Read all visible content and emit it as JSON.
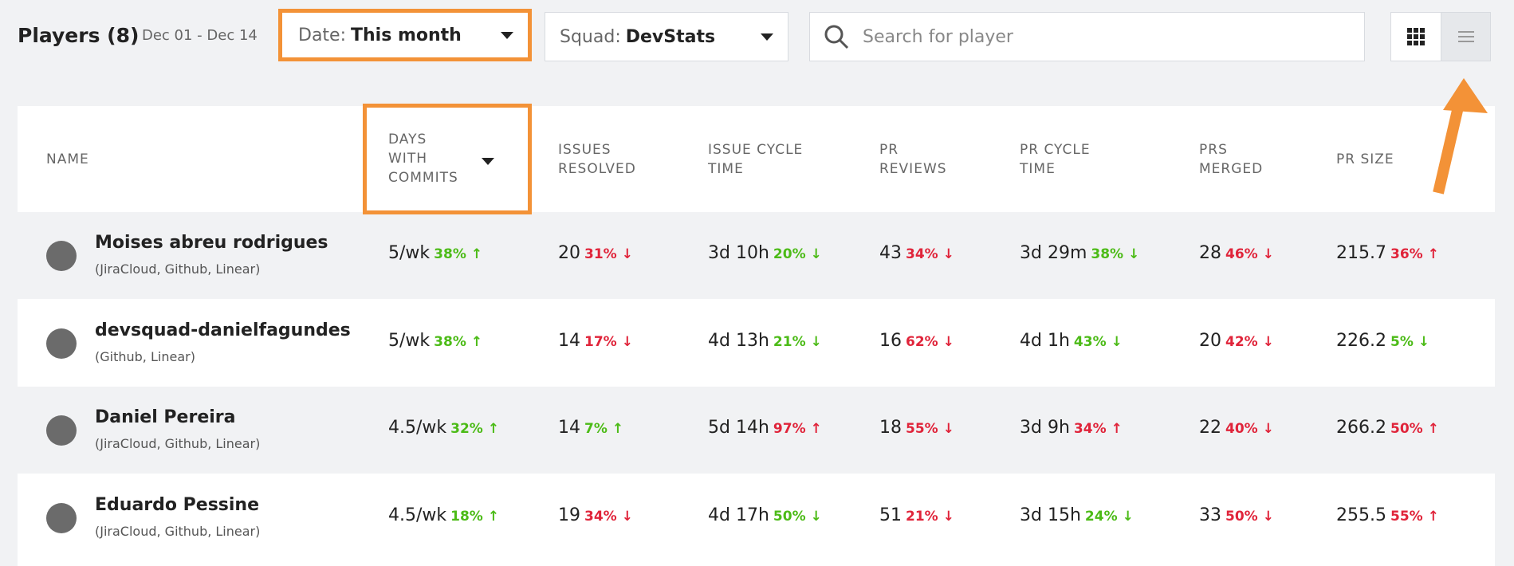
{
  "header": {
    "title": "Players (8)",
    "date_range": "Dec 01 - Dec 14",
    "filters": [
      {
        "label": "Date:",
        "value": "This month"
      },
      {
        "label": "Squad:",
        "value": "DevStats"
      }
    ],
    "search_placeholder": "Search for player"
  },
  "table": {
    "columns": [
      "NAME",
      "DAYS WITH COMMITS",
      "ISSUES RESOLVED",
      "ISSUE CYCLE TIME",
      "PR REVIEWS",
      "PR CYCLE TIME",
      "PRS MERGED",
      "PR SIZE"
    ],
    "rows": [
      {
        "name": "Moises abreu rodrigues",
        "sources": "(JiraCloud, Github, Linear)",
        "cells": [
          {
            "value": "5/wk",
            "change": "38%",
            "arrow": "↑",
            "color": "#4cbb17"
          },
          {
            "value": "20",
            "change": "31%",
            "arrow": "↓",
            "color": "#e0243a"
          },
          {
            "value": "3d 10h",
            "change": "20%",
            "arrow": "↓",
            "color": "#4cbb17"
          },
          {
            "value": "43",
            "change": "34%",
            "arrow": "↓",
            "color": "#e0243a"
          },
          {
            "value": "3d 29m",
            "change": "38%",
            "arrow": "↓",
            "color": "#4cbb17"
          },
          {
            "value": "28",
            "change": "46%",
            "arrow": "↓",
            "color": "#e0243a"
          },
          {
            "value": "215.7",
            "change": "36%",
            "arrow": "↑",
            "color": "#e0243a"
          }
        ]
      },
      {
        "name": "devsquad-danielfagundes",
        "sources": "(Github, Linear)",
        "cells": [
          {
            "value": "5/wk",
            "change": "38%",
            "arrow": "↑",
            "color": "#4cbb17"
          },
          {
            "value": "14",
            "change": "17%",
            "arrow": "↓",
            "color": "#e0243a"
          },
          {
            "value": "4d 13h",
            "change": "21%",
            "arrow": "↓",
            "color": "#4cbb17"
          },
          {
            "value": "16",
            "change": "62%",
            "arrow": "↓",
            "color": "#e0243a"
          },
          {
            "value": "4d 1h",
            "change": "43%",
            "arrow": "↓",
            "color": "#4cbb17"
          },
          {
            "value": "20",
            "change": "42%",
            "arrow": "↓",
            "color": "#e0243a"
          },
          {
            "value": "226.2",
            "change": "5%",
            "arrow": "↓",
            "color": "#4cbb17"
          }
        ]
      },
      {
        "name": "Daniel Pereira",
        "sources": "(JiraCloud, Github, Linear)",
        "cells": [
          {
            "value": "4.5/wk",
            "change": "32%",
            "arrow": "↑",
            "color": "#4cbb17"
          },
          {
            "value": "14",
            "change": "7%",
            "arrow": "↑",
            "color": "#4cbb17"
          },
          {
            "value": "5d 14h",
            "change": "97%",
            "arrow": "↑",
            "color": "#e0243a"
          },
          {
            "value": "18",
            "change": "55%",
            "arrow": "↓",
            "color": "#e0243a"
          },
          {
            "value": "3d 9h",
            "change": "34%",
            "arrow": "↑",
            "color": "#e0243a"
          },
          {
            "value": "22",
            "change": "40%",
            "arrow": "↓",
            "color": "#e0243a"
          },
          {
            "value": "266.2",
            "change": "50%",
            "arrow": "↑",
            "color": "#e0243a"
          }
        ]
      },
      {
        "name": "Eduardo Pessine",
        "sources": "(JiraCloud, Github, Linear)",
        "cells": [
          {
            "value": "4.5/wk",
            "change": "18%",
            "arrow": "↑",
            "color": "#4cbb17"
          },
          {
            "value": "19",
            "change": "34%",
            "arrow": "↓",
            "color": "#e0243a"
          },
          {
            "value": "4d 17h",
            "change": "50%",
            "arrow": "↓",
            "color": "#4cbb17"
          },
          {
            "value": "51",
            "change": "21%",
            "arrow": "↓",
            "color": "#e0243a"
          },
          {
            "value": "3d 15h",
            "change": "24%",
            "arrow": "↓",
            "color": "#4cbb17"
          },
          {
            "value": "33",
            "change": "50%",
            "arrow": "↓",
            "color": "#e0243a"
          },
          {
            "value": "255.5",
            "change": "55%",
            "arrow": "↑",
            "color": "#e0243a"
          }
        ]
      }
    ]
  }
}
